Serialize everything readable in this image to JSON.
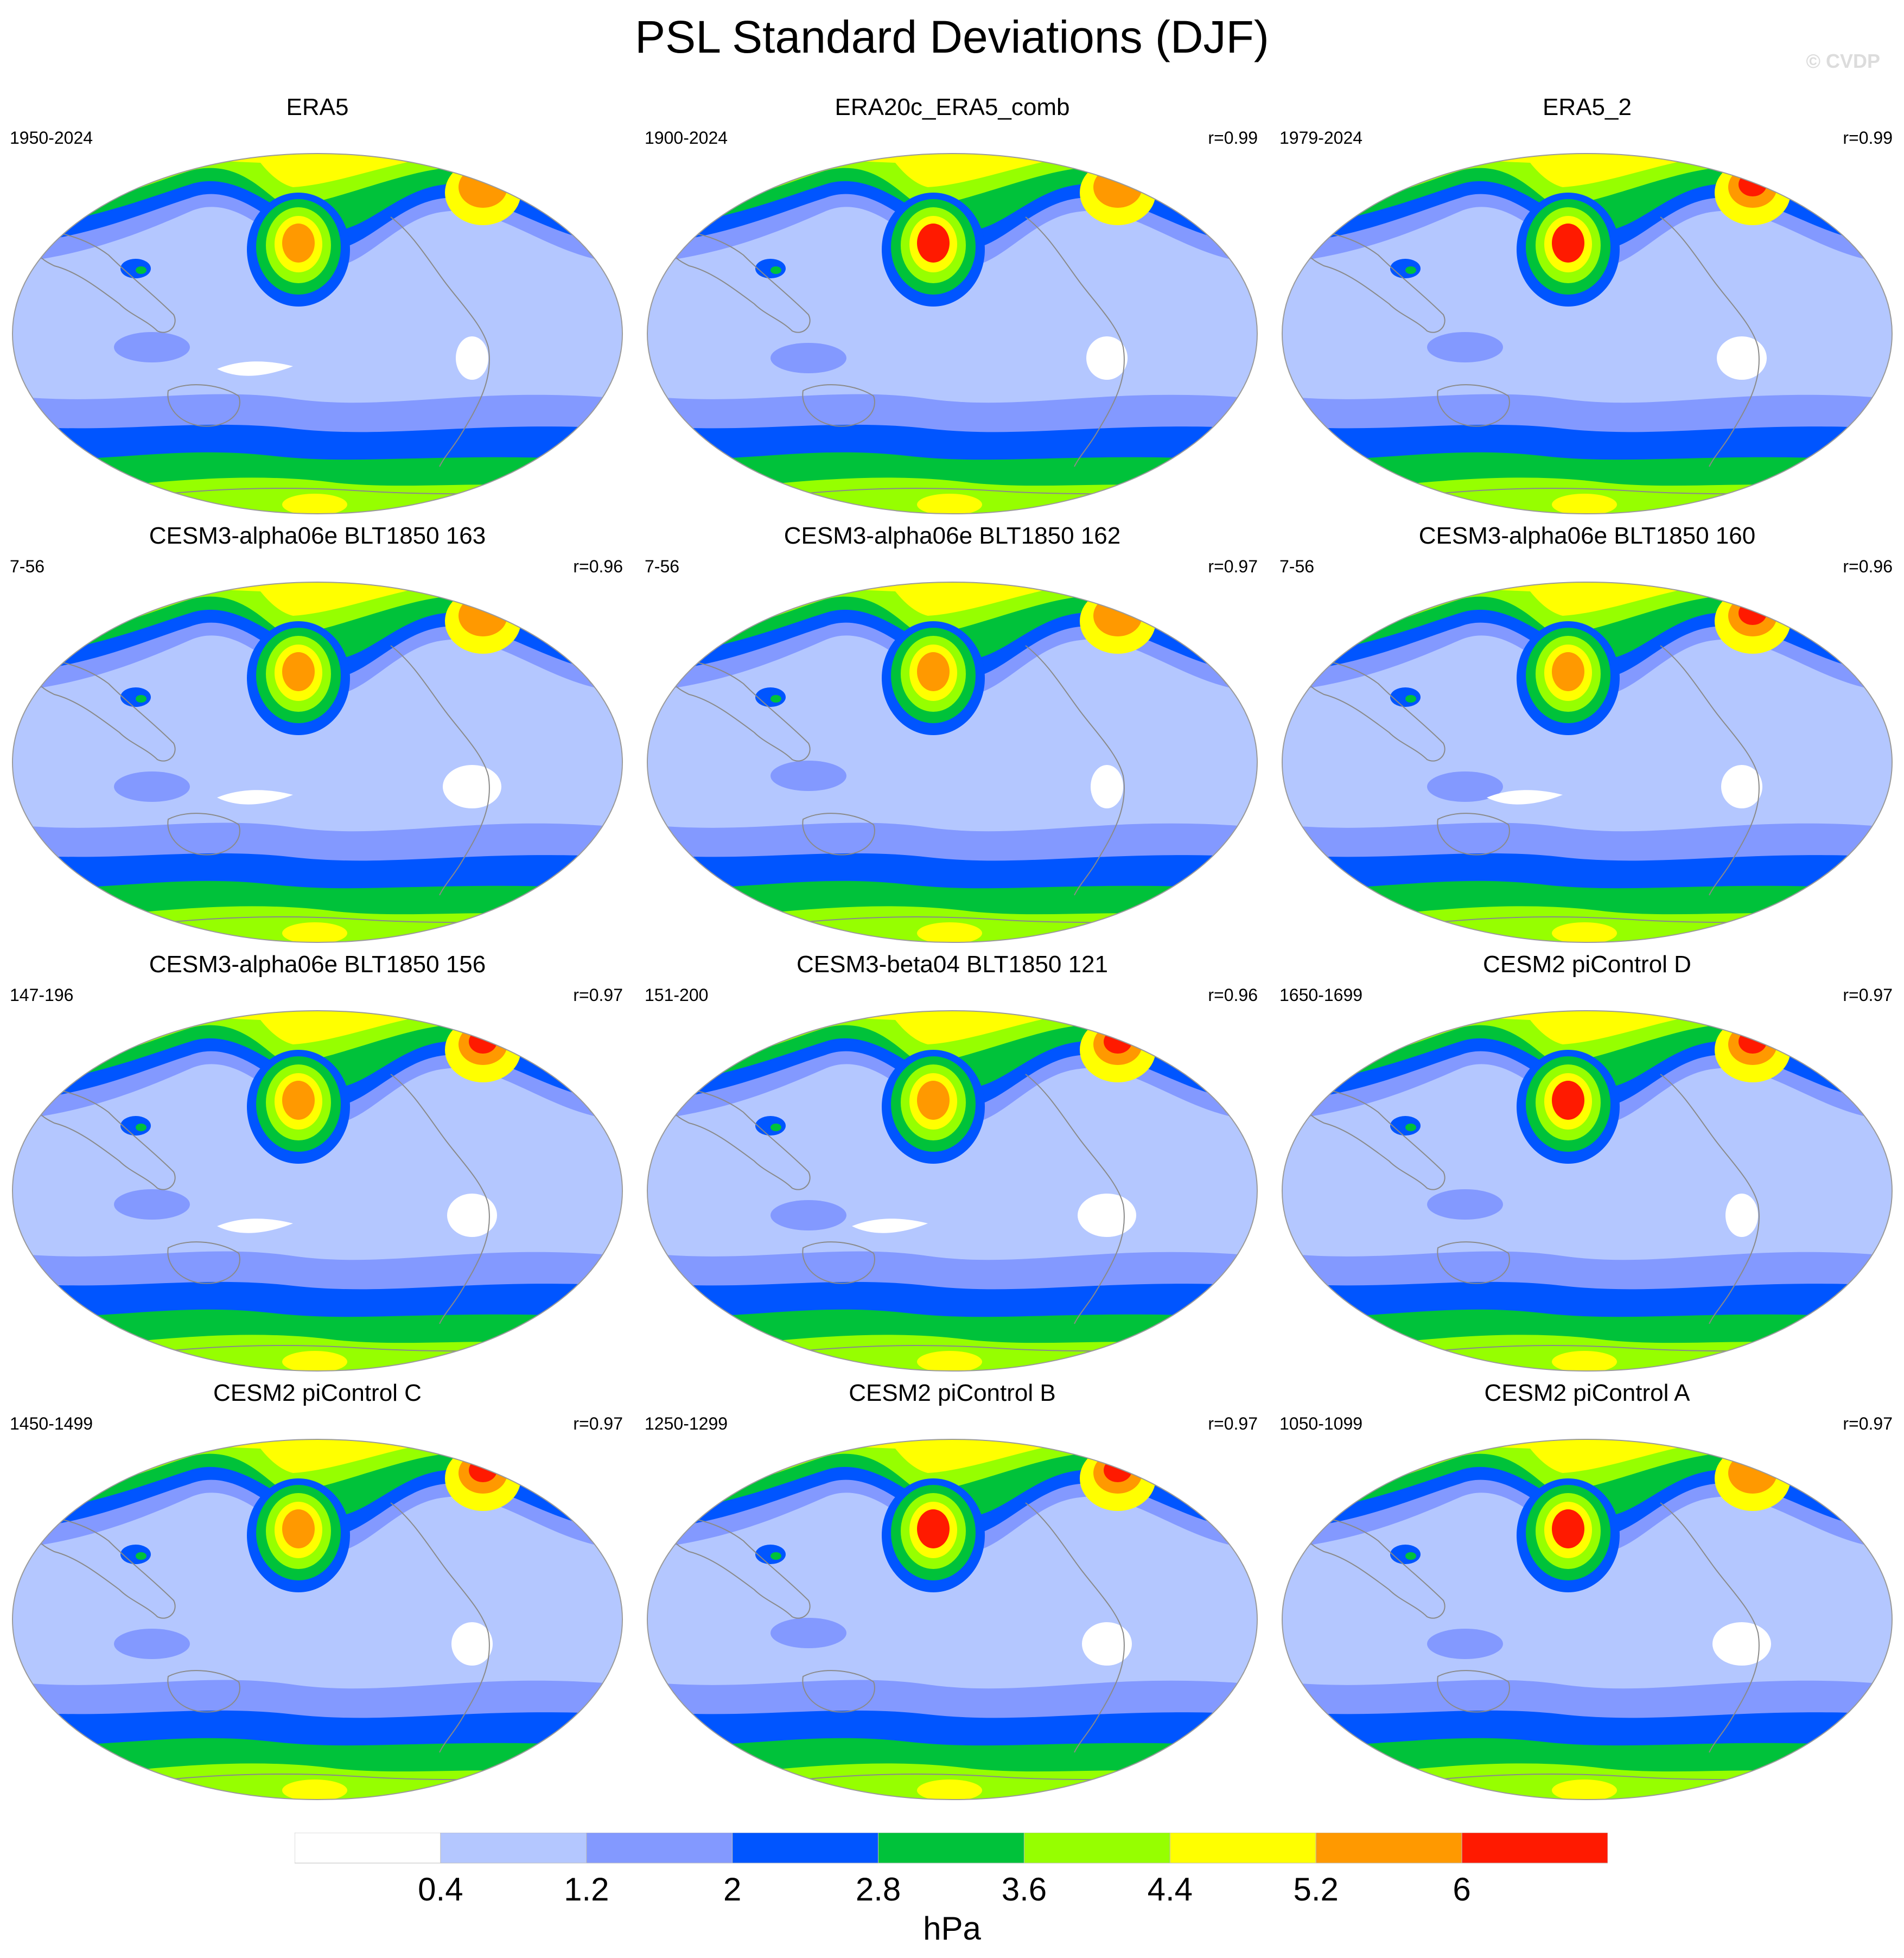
{
  "figure": {
    "title": "PSL Standard Deviations (DJF)",
    "watermark": "© CVDP",
    "colorbar_unit": "hPa"
  },
  "colorbar": {
    "levels": [
      0.4,
      1.2,
      2,
      2.8,
      3.6,
      4.4,
      5.2,
      6
    ],
    "tick_labels": [
      "0.4",
      "1.2",
      "2",
      "2.8",
      "3.6",
      "4.4",
      "5.2",
      "6"
    ],
    "colors": [
      "#ffffff",
      "#b4c7ff",
      "#8399ff",
      "#0055ff",
      "#00c23a",
      "#96ff00",
      "#ffff00",
      "#ff9900",
      "#ff1a00"
    ]
  },
  "map_style": {
    "ocean_land_base_color": "#b4c7ff",
    "coastline_color": "#8a8a8a",
    "outline_color": "#9a9a9a"
  },
  "panels": [
    {
      "title": "ERA5",
      "period": "1950-2024",
      "corr": ""
    },
    {
      "title": "ERA20c_ERA5_comb",
      "period": "1900-2024",
      "corr": "r=0.99"
    },
    {
      "title": "ERA5_2",
      "period": "1979-2024",
      "corr": "r=0.99"
    },
    {
      "title": "CESM3-alpha06e BLT1850 163",
      "period": "7-56",
      "corr": "r=0.96"
    },
    {
      "title": "CESM3-alpha06e BLT1850 162",
      "period": "7-56",
      "corr": "r=0.97"
    },
    {
      "title": "CESM3-alpha06e BLT1850 160",
      "period": "7-56",
      "corr": "r=0.96"
    },
    {
      "title": "CESM3-alpha06e BLT1850 156",
      "period": "147-196",
      "corr": "r=0.97"
    },
    {
      "title": "CESM3-beta04 BLT1850 121",
      "period": "151-200",
      "corr": "r=0.96"
    },
    {
      "title": "CESM2 piControl D",
      "period": "1650-1699",
      "corr": "r=0.97"
    },
    {
      "title": "CESM2 piControl C",
      "period": "1450-1499",
      "corr": "r=0.97"
    },
    {
      "title": "CESM2 piControl B",
      "period": "1250-1299",
      "corr": "r=0.97"
    },
    {
      "title": "CESM2 piControl A",
      "period": "1050-1099",
      "corr": "r=0.97"
    }
  ]
}
